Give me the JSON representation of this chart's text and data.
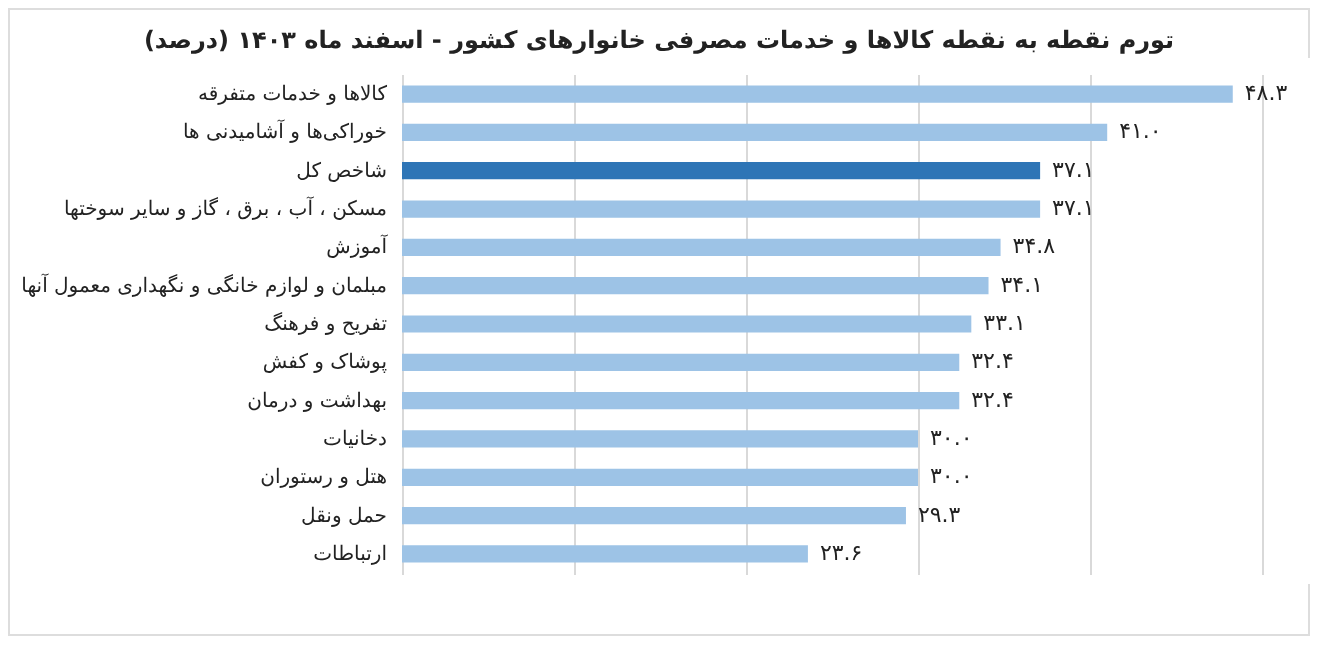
{
  "chart_data": {
    "type": "bar",
    "orientation": "horizontal",
    "title": "تورم نقطه به نقطه کالاها و خدمات مصرفی خانوارهای کشور - اسفند ماه ۱۴۰۳ (درصد)",
    "categories": [
      "کالاها و خدمات متفرقه",
      "خوراکی‌ها و آشامیدنی ها",
      "شاخص کل",
      "مسکن ، آب ، برق ، گاز و سایر سوختها",
      "آموزش",
      "مبلمان و لوازم خانگی و نگهداری معمول آنها",
      "تفریح و فرهنگ",
      "پوشاک و کفش",
      "بهداشت و درمان",
      "دخانیات",
      "هتل و رستوران",
      "حمل ونقل",
      "ارتباطات"
    ],
    "values": [
      48.3,
      41.0,
      37.1,
      37.1,
      34.8,
      34.1,
      33.1,
      32.4,
      32.4,
      30.0,
      30.0,
      29.3,
      23.6
    ],
    "value_labels": [
      "۴۸.۳",
      "۴۱.۰",
      "۳۷.۱",
      "۳۷.۱",
      "۳۴.۸",
      "۳۴.۱",
      "۳۳.۱",
      "۳۲.۴",
      "۳۲.۴",
      "۳۰.۰",
      "۳۰.۰",
      "۲۹.۳",
      "۲۳.۶"
    ],
    "colors": [
      "#9dc3e6",
      "#9dc3e6",
      "#2e75b6",
      "#9dc3e6",
      "#9dc3e6",
      "#9dc3e6",
      "#9dc3e6",
      "#9dc3e6",
      "#9dc3e6",
      "#9dc3e6",
      "#9dc3e6",
      "#9dc3e6",
      "#9dc3e6"
    ],
    "grid": "x",
    "tick_labels": "y"
  }
}
